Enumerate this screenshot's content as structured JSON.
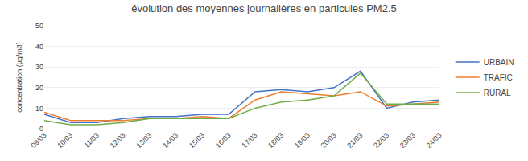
{
  "chart_data": {
    "type": "line",
    "title": "évolution des moyennes journalières en particules PM2.5",
    "ylabel": "concentration (µg/m3)",
    "categories": [
      "09/03",
      "10/03",
      "11/03",
      "12/03",
      "13/03",
      "14/03",
      "15/03",
      "16/03",
      "17/03",
      "18/03",
      "19/03",
      "20/03",
      "21/03",
      "22/03",
      "23/03",
      "24/03"
    ],
    "series": [
      {
        "name": "URBAIN",
        "color": "#4472C4",
        "values": [
          7,
          3,
          3,
          5,
          6,
          6,
          7,
          7,
          18,
          19,
          18,
          20,
          28,
          10,
          13,
          14
        ]
      },
      {
        "name": "TRAFIC",
        "color": "#ED7D31",
        "values": [
          8,
          4,
          4,
          4,
          5,
          5,
          6,
          5,
          14,
          18,
          17,
          16,
          18,
          11,
          12,
          13
        ]
      },
      {
        "name": "RURAL",
        "color": "#70AD47",
        "values": [
          4,
          2,
          2,
          3,
          5,
          5,
          5,
          5,
          10,
          13,
          14,
          16,
          27,
          12,
          12,
          12
        ]
      }
    ],
    "ylim": [
      0,
      50
    ],
    "yticks": [
      0,
      10,
      20,
      30,
      40,
      50
    ],
    "grid": true,
    "legend": "right"
  }
}
